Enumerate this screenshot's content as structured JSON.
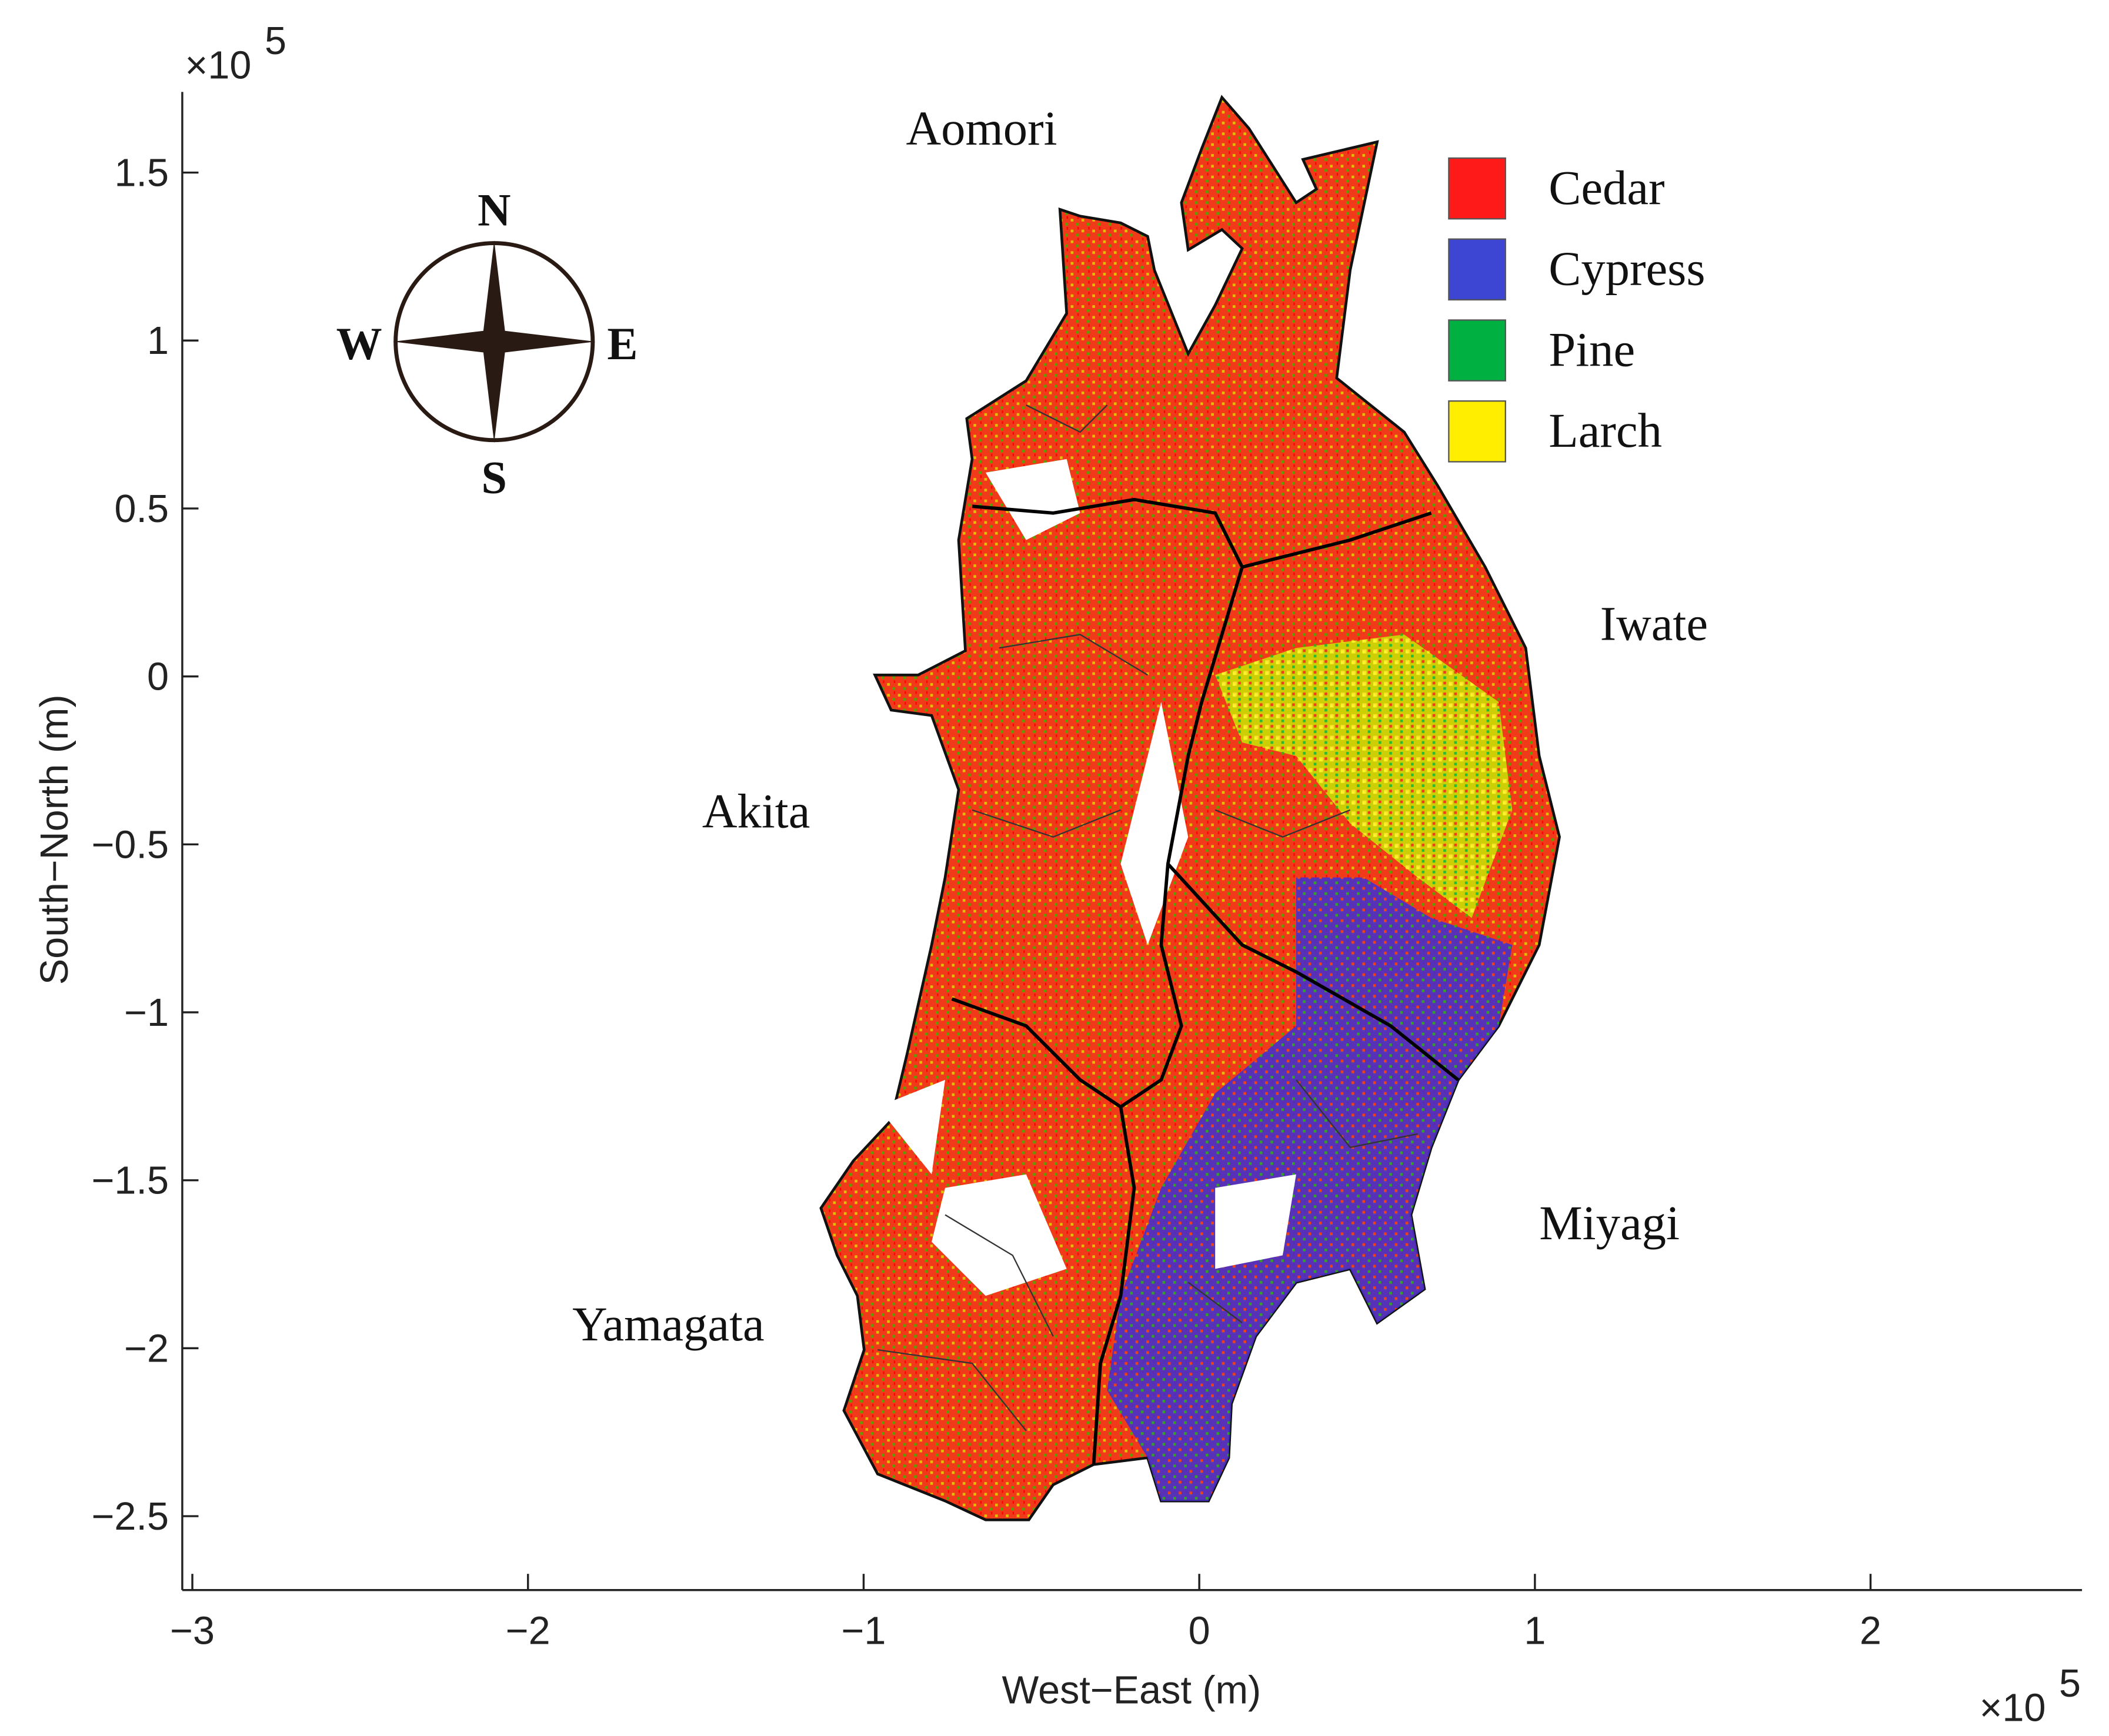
{
  "map": {
    "x_axis": {
      "label": "West−East (m)",
      "lim": [
        -3.03,
        2.63
      ],
      "multiplier": "×10",
      "power": "5",
      "ticks": [
        {
          "value": -3,
          "label": "−3"
        },
        {
          "value": -2,
          "label": "−2"
        },
        {
          "value": -1,
          "label": "−1"
        },
        0,
        1,
        2
      ]
    },
    "y_axis": {
      "label": "South−North (m)",
      "lim": [
        -2.72,
        1.74
      ],
      "multiplier": "×10",
      "power": "5",
      "ticks": [
        {
          "value": -2.5,
          "label": "−2.5"
        },
        {
          "value": -2,
          "label": "−2"
        },
        {
          "value": -1.5,
          "label": "−1.5"
        },
        {
          "value": -1,
          "label": "−1"
        },
        {
          "value": -0.5,
          "label": "−0.5"
        },
        0,
        0.5,
        1,
        1.5
      ]
    },
    "regions": [
      "Aomori",
      "Iwate",
      "Akita",
      "Miyagi",
      "Yamagata"
    ],
    "legend": [
      {
        "name": "Cedar",
        "color": "#ff1a1a"
      },
      {
        "name": "Cypress",
        "color": "#3c46d2"
      },
      {
        "name": "Pine",
        "color": "#00b040"
      },
      {
        "name": "Larch",
        "color": "#ffee00"
      }
    ],
    "compass": {
      "north": "N",
      "east": "E",
      "south": "S",
      "west": "W"
    }
  }
}
